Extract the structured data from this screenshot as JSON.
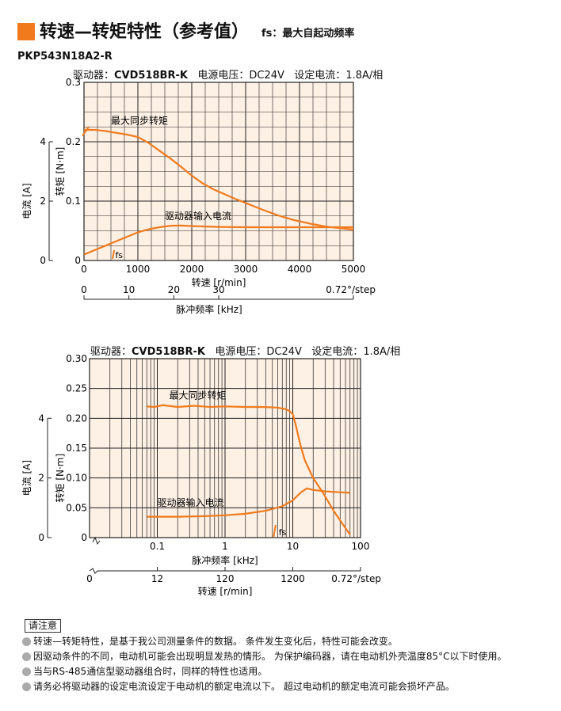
{
  "page": {
    "title": "转速—转矩特性（参考值）",
    "subtitle": "fs：最大自起动频率",
    "model": "PKP543N18A2-R"
  },
  "conditions": {
    "driver_label": "驱动器：",
    "driver_value": "CVD518BR-K",
    "voltage_label": "电源电压：",
    "voltage_value": "DC24V",
    "current_label": "设定电流：",
    "current_value": "1.8A/相"
  },
  "colors": {
    "accent": "#f07a1c",
    "plot_bg": "#fdf0e4",
    "curve": "#f07a1c"
  },
  "notes": {
    "title": "请注意",
    "items": [
      "转速—转矩特性，是基于我公司测量条件的数据。 条件发生变化后，特性可能会改变。",
      "因驱动条件的不同，电动机可能会出现明显发热的情形。 为保护编码器，请在电动机外壳温度85°C以下时使用。",
      "当与RS-485通信型驱动器组合时，同样的特性也适用。",
      "请务必将驱动器的设定电流设定于电动机的额定电流以下。 超过电动机的额定电流可能会损坏产品。"
    ]
  },
  "chart_data": [
    {
      "type": "line",
      "x_scale": "linear",
      "xlabel": "转速 [r/min]",
      "xlim": [
        0,
        5000
      ],
      "xticks": [
        "0",
        "1000",
        "2000",
        "3000",
        "4000",
        "5000"
      ],
      "ylabel": "转矩 [N·m]",
      "ylim": [
        0,
        0.3
      ],
      "yticks": [
        "0",
        "0.1",
        "0.2",
        "0.3"
      ],
      "y2label": "电流 [A]",
      "y2lim": [
        0,
        6
      ],
      "y2ticks": [
        "0",
        "2",
        "4"
      ],
      "x2label": "脉冲频率 [kHz]",
      "x2ticks": [
        "0",
        "10",
        "20",
        "30"
      ],
      "x2_unit": "0.72°/step",
      "grid": true,
      "series": [
        {
          "name": "最大同步转矩",
          "x": [
            0,
            200,
            400,
            600,
            800,
            1000,
            1200,
            1400,
            1600,
            1800,
            2000,
            2200,
            2400,
            2600,
            2800,
            3000,
            3300,
            3600,
            3900,
            4200,
            4500,
            4800,
            5000
          ],
          "y": [
            0.22,
            0.22,
            0.218,
            0.215,
            0.212,
            0.208,
            0.198,
            0.185,
            0.172,
            0.158,
            0.143,
            0.13,
            0.12,
            0.112,
            0.104,
            0.097,
            0.086,
            0.076,
            0.068,
            0.062,
            0.057,
            0.054,
            0.052
          ]
        },
        {
          "name": "驱动器输入电流",
          "x": [
            0,
            200,
            400,
            600,
            800,
            1000,
            1200,
            1400,
            1600,
            1800,
            2000,
            2500,
            3000,
            3500,
            4000,
            4500,
            5000
          ],
          "y2": [
            0.2,
            0.35,
            0.5,
            0.65,
            0.8,
            0.95,
            1.05,
            1.12,
            1.17,
            1.18,
            1.16,
            1.13,
            1.12,
            1.12,
            1.12,
            1.12,
            1.12
          ]
        }
      ],
      "annotations": [
        "fs"
      ]
    },
    {
      "type": "line",
      "x_scale": "log",
      "xlabel": "脉冲频率 [kHz]",
      "xlim": [
        0.01,
        100
      ],
      "xticks": [
        "0.1",
        "1",
        "10",
        "100"
      ],
      "ylabel": "转矩 [N·m]",
      "ylim": [
        0,
        0.3
      ],
      "yticks": [
        "0",
        "0.05",
        "0.10",
        "0.15",
        "0.20",
        "0.25",
        "0.30"
      ],
      "y2label": "电流 [A]",
      "y2lim": [
        0,
        6
      ],
      "y2ticks": [
        "0",
        "2",
        "4"
      ],
      "x2label": "转速 [r/min]",
      "x2ticks": [
        "0",
        "12",
        "120",
        "1200"
      ],
      "x2_unit": "0.72°/step",
      "grid": true,
      "series": [
        {
          "name": "最大同步转矩",
          "x": [
            0.07,
            0.09,
            0.12,
            0.2,
            0.35,
            0.6,
            1,
            2,
            3.5,
            6,
            8,
            9,
            10,
            11,
            13,
            15,
            20,
            28,
            40,
            55,
            70
          ],
          "y": [
            0.22,
            0.219,
            0.222,
            0.219,
            0.221,
            0.219,
            0.22,
            0.219,
            0.219,
            0.218,
            0.215,
            0.212,
            0.207,
            0.19,
            0.155,
            0.13,
            0.1,
            0.075,
            0.045,
            0.022,
            0.005
          ]
        },
        {
          "name": "驱动器输入电流",
          "x": [
            0.07,
            0.2,
            0.5,
            1,
            2,
            4,
            7,
            10,
            13,
            16,
            20,
            30,
            50,
            70
          ],
          "y2": [
            0.7,
            0.7,
            0.72,
            0.75,
            0.8,
            0.9,
            1.05,
            1.25,
            1.5,
            1.65,
            1.6,
            1.55,
            1.52,
            1.5
          ]
        }
      ],
      "annotations": [
        "fs"
      ]
    }
  ]
}
